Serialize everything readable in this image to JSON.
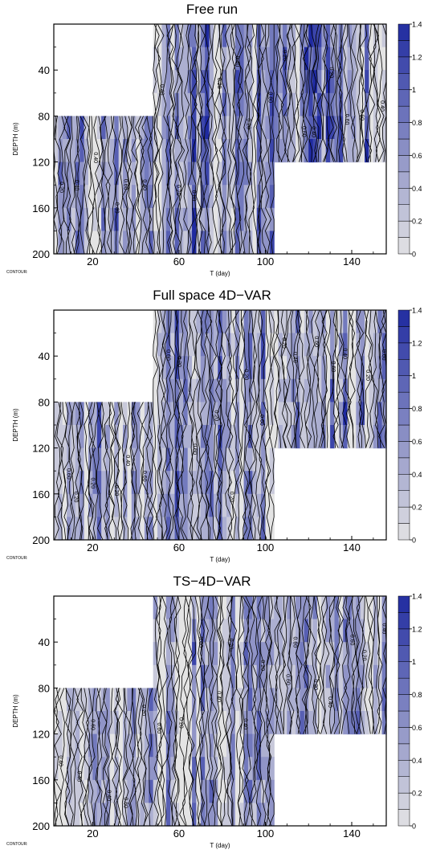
{
  "chart_data": [
    {
      "type": "heatmap",
      "title": "Free run",
      "xlabel": "T (day)",
      "ylabel": "DEPTH (m)",
      "footer": "CONTOUR:",
      "xlim": [
        2,
        156
      ],
      "ylim": [
        200,
        0
      ],
      "x_ticks": [
        20,
        60,
        100,
        140
      ],
      "y_ticks": [
        40,
        80,
        120,
        160,
        200
      ],
      "colorbar": {
        "min": 0,
        "max": 1.4,
        "step": 0.1,
        "ticks": [
          "0",
          "0.2",
          "0.4",
          "0.6",
          "0.8",
          "1",
          "1.2",
          "1.4"
        ],
        "low_color": "#e4e4e4",
        "high_color": "#1f2aa0"
      },
      "data_region": [
        {
          "x": [
            2,
            48
          ],
          "depth": [
            80,
            200
          ]
        },
        {
          "x": [
            48,
            104
          ],
          "depth": [
            0,
            200
          ]
        },
        {
          "x": [
            104,
            156
          ],
          "depth": [
            0,
            120
          ]
        }
      ],
      "contour_labels": [
        "0.20",
        "0.40",
        "0.60"
      ],
      "seed": 11,
      "intensity": 0.95
    },
    {
      "type": "heatmap",
      "title": "Full space 4D−VAR",
      "xlabel": "T (day)",
      "ylabel": "DEPTH (m)",
      "footer": "CONTOUR:",
      "xlim": [
        2,
        156
      ],
      "ylim": [
        200,
        0
      ],
      "x_ticks": [
        20,
        60,
        100,
        140
      ],
      "y_ticks": [
        40,
        80,
        120,
        160,
        200
      ],
      "colorbar": {
        "min": 0,
        "max": 1.4,
        "step": 0.1,
        "ticks": [
          "0",
          "0.2",
          "0.4",
          "0.6",
          "0.8",
          "1",
          "1.2",
          "1.4"
        ],
        "low_color": "#e4e4e4",
        "high_color": "#1f2aa0"
      },
      "data_region": [
        {
          "x": [
            2,
            48
          ],
          "depth": [
            80,
            200
          ]
        },
        {
          "x": [
            48,
            104
          ],
          "depth": [
            0,
            200
          ]
        },
        {
          "x": [
            104,
            156
          ],
          "depth": [
            0,
            120
          ]
        }
      ],
      "contour_labels": [
        "0.20",
        "0.40",
        "0.60"
      ],
      "seed": 27,
      "intensity": 0.85
    },
    {
      "type": "heatmap",
      "title": "TS−4D−VAR",
      "xlabel": "T (day)",
      "ylabel": "DEPTH (m)",
      "footer": "CONTOUR:",
      "xlim": [
        2,
        156
      ],
      "ylim": [
        200,
        0
      ],
      "x_ticks": [
        20,
        60,
        100,
        140
      ],
      "y_ticks": [
        40,
        80,
        120,
        160,
        200
      ],
      "colorbar": {
        "min": 0,
        "max": 1.4,
        "step": 0.1,
        "ticks": [
          "0",
          "0.2",
          "0.4",
          "0.6",
          "0.8",
          "1",
          "1.2",
          "1.4"
        ],
        "low_color": "#e4e4e4",
        "high_color": "#1f2aa0"
      },
      "data_region": [
        {
          "x": [
            2,
            48
          ],
          "depth": [
            80,
            200
          ]
        },
        {
          "x": [
            48,
            104
          ],
          "depth": [
            0,
            200
          ]
        },
        {
          "x": [
            104,
            156
          ],
          "depth": [
            0,
            120
          ]
        }
      ],
      "contour_labels": [
        "0.20",
        "0.40",
        "0.60"
      ],
      "seed": 53,
      "intensity": 0.75
    }
  ]
}
